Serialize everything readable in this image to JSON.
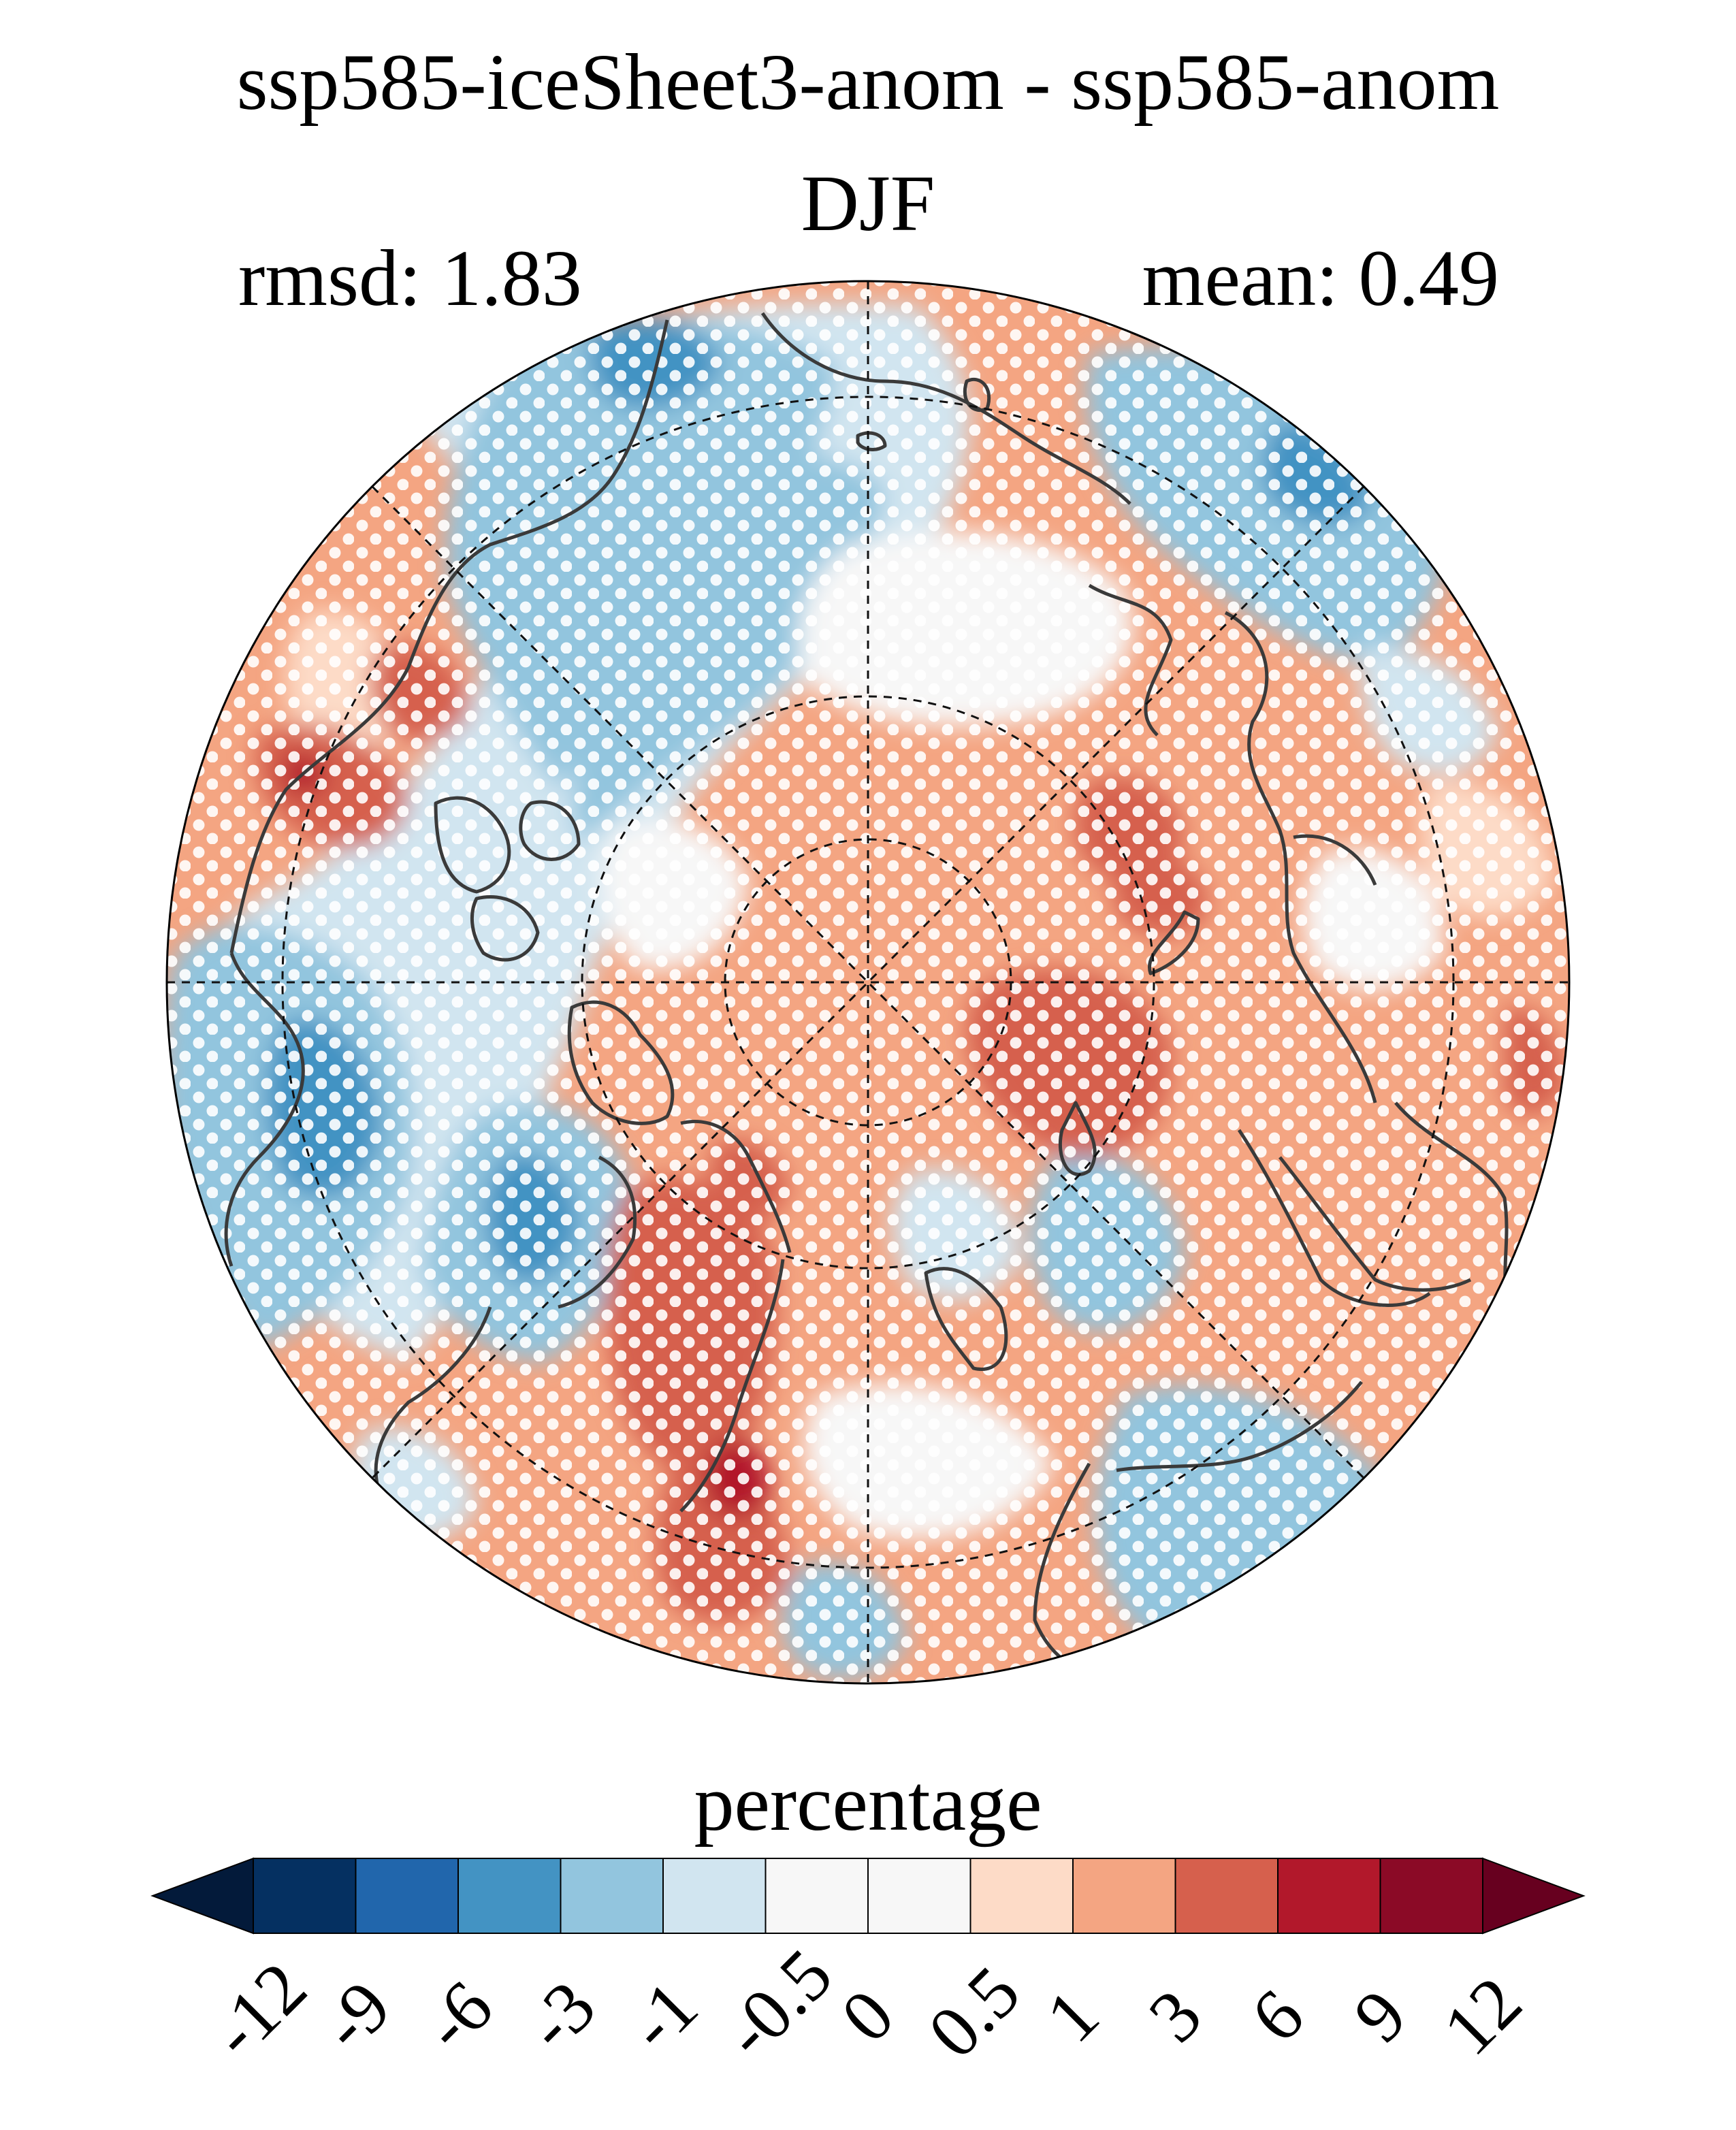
{
  "title": {
    "line1": "ssp585-iceSheet3-anom - ssp585-anom",
    "line2": "DJF"
  },
  "stats": {
    "rmsd_label": "rmsd: 1.83",
    "mean_label": "mean: 0.49"
  },
  "colorbar": {
    "label": "percentage",
    "ticks": [
      "-12",
      "-9",
      "-6",
      "-3",
      "-1",
      "-0.5",
      "0",
      "0.5",
      "1",
      "3",
      "6",
      "9",
      "12"
    ],
    "colors": [
      "#053061",
      "#2166ac",
      "#4393c3",
      "#92c5de",
      "#d1e5f0",
      "#f7f7f7",
      "#f7f7f7",
      "#fddbc7",
      "#f4a582",
      "#d6604d",
      "#b2182b",
      "#8b0a26"
    ],
    "under_color": "#031a3a",
    "over_color": "#67001f"
  },
  "map": {
    "projection": "north-polar-stereographic",
    "stippling": "significance dots (white)",
    "colors": {
      "coastline": "#3a3a3a",
      "grid": "#111111",
      "stipple": "#ffffff"
    }
  }
}
